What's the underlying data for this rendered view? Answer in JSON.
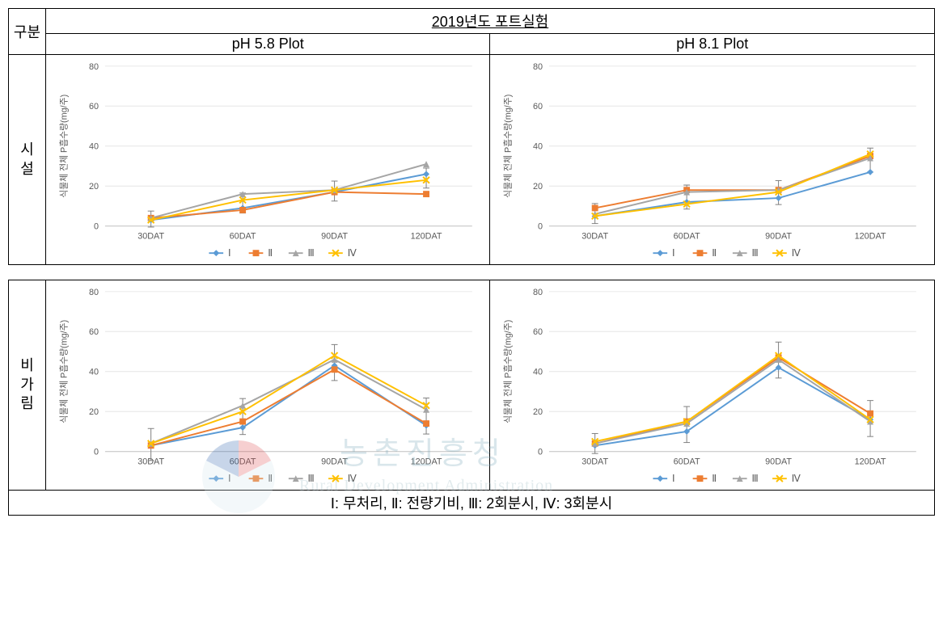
{
  "top_title": "2019년도 포트실험",
  "col_gubun": "구분",
  "col_left": "pH 5.8 Plot",
  "col_right": "pH 8.1 Plot",
  "row_sisul": "시\n설",
  "row_bigarim": "비\n가\n림",
  "footer": "Ⅰ: 무처리, Ⅱ: 전량기비, Ⅲ: 2회분시, Ⅳ: 3회분시",
  "ylabel": "식물체 전체 P흡수량(mg/주)",
  "categories": [
    "30DAT",
    "60DAT",
    "90DAT",
    "120DAT"
  ],
  "legend": [
    "Ⅰ",
    "Ⅱ",
    "Ⅲ",
    "Ⅳ"
  ],
  "palette": {
    "I": "#5b9bd5",
    "II": "#ed7d31",
    "III": "#a5a5a5",
    "IV": "#ffc000"
  },
  "ylim": [
    0,
    80
  ],
  "ystep": 20,
  "label_fontsize": 11,
  "tick_fontsize": 11,
  "grid_color": "#e6e6e6",
  "axis_color": "#bfbfbf",
  "background_color": "#ffffff",
  "error_default": 5,
  "charts": {
    "sisul_58": {
      "I": [
        3,
        9,
        17,
        26
      ],
      "II": [
        4,
        8,
        17,
        16
      ],
      "III": [
        4,
        16,
        18,
        31
      ],
      "IV": [
        3,
        13,
        18,
        23
      ],
      "err": {
        "30DAT": 4,
        "60DAT": 5,
        "90DAT": 5,
        "120DAT": 5
      }
    },
    "sisul_81": {
      "I": [
        5,
        12,
        14,
        27
      ],
      "II": [
        9,
        18,
        18,
        35
      ],
      "III": [
        6,
        17,
        18,
        34
      ],
      "IV": [
        5,
        11,
        17,
        36
      ],
      "err": {
        "30DAT": 5,
        "60DAT": 6,
        "90DAT": 6,
        "120DAT": 6
      }
    },
    "bigarim_58": {
      "I": [
        3,
        12,
        43,
        13
      ],
      "II": [
        3,
        15,
        41,
        14
      ],
      "III": [
        4,
        23,
        46,
        21
      ],
      "IV": [
        4,
        20,
        48,
        23
      ],
      "err": {
        "30DAT": 8,
        "60DAT": 9,
        "90DAT": 9,
        "120DAT": 9
      }
    },
    "bigarim_81": {
      "I": [
        3,
        10,
        42,
        16
      ],
      "II": [
        4,
        15,
        47,
        19
      ],
      "III": [
        4,
        14,
        46,
        15
      ],
      "IV": [
        5,
        15,
        48,
        16
      ],
      "err": {
        "30DAT": 5,
        "60DAT": 9,
        "90DAT": 9,
        "120DAT": 9
      }
    }
  },
  "watermark": {
    "kor": "농촌진흥청",
    "eng": "Rural Development Administration"
  }
}
